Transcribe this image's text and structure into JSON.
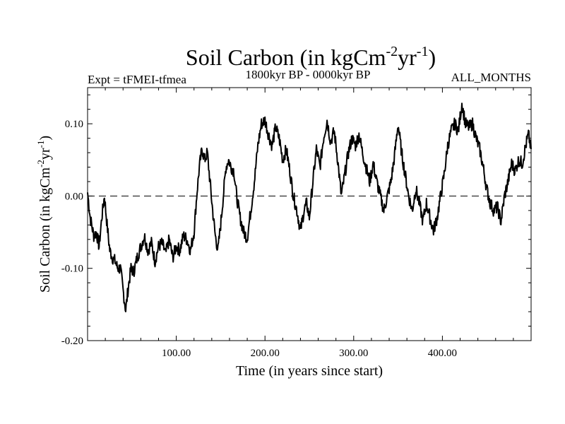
{
  "chart_data": {
    "type": "line",
    "title": {
      "base": "Soil Carbon (in kgCm",
      "sup1": "-2",
      "mid": "yr",
      "sup2": "-1",
      "end": ")"
    },
    "subtitle_left": "Expt = tFMEI-tfmea",
    "subtitle_center": "1800kyr BP - 0000kyr BP",
    "subtitle_right": "ALL_MONTHS",
    "xlabel": "Time (in years since start)",
    "ylabel": {
      "base": "Soil Carbon (in kgCm",
      "sup1": "-2",
      "mid": "yr",
      "sup2": "-1",
      "end": ")"
    },
    "xlim": [
      0,
      500
    ],
    "ylim": [
      -0.2,
      0.15
    ],
    "x_ticks": [
      100,
      200,
      300,
      400
    ],
    "x_tick_labels": [
      "100.00",
      "200.00",
      "300.00",
      "400.00"
    ],
    "y_ticks": [
      -0.2,
      -0.1,
      0.0,
      0.1
    ],
    "y_tick_labels": [
      "-0.20",
      "-0.10",
      "0.00",
      "0.10"
    ],
    "reference_line": {
      "y": 0.0,
      "style": "dashed"
    },
    "series": [
      {
        "name": "Soil Carbon",
        "points": [
          [
            0,
            0.005
          ],
          [
            3,
            -0.03
          ],
          [
            7,
            -0.055
          ],
          [
            10,
            -0.05
          ],
          [
            13,
            -0.07
          ],
          [
            16,
            -0.03
          ],
          [
            19,
            0.0
          ],
          [
            22,
            -0.04
          ],
          [
            25,
            -0.075
          ],
          [
            28,
            -0.085
          ],
          [
            31,
            -0.09
          ],
          [
            34,
            -0.1
          ],
          [
            37,
            -0.1
          ],
          [
            40,
            -0.13
          ],
          [
            43,
            -0.158
          ],
          [
            46,
            -0.125
          ],
          [
            49,
            -0.1
          ],
          [
            52,
            -0.105
          ],
          [
            56,
            -0.085
          ],
          [
            60,
            -0.07
          ],
          [
            64,
            -0.055
          ],
          [
            68,
            -0.075
          ],
          [
            72,
            -0.065
          ],
          [
            76,
            -0.09
          ],
          [
            80,
            -0.07
          ],
          [
            84,
            -0.065
          ],
          [
            88,
            -0.08
          ],
          [
            92,
            -0.06
          ],
          [
            96,
            -0.085
          ],
          [
            100,
            -0.07
          ],
          [
            104,
            -0.075
          ],
          [
            108,
            -0.055
          ],
          [
            112,
            -0.06
          ],
          [
            116,
            -0.075
          ],
          [
            120,
            -0.05
          ],
          [
            123,
            0.0
          ],
          [
            126,
            0.04
          ],
          [
            129,
            0.065
          ],
          [
            132,
            0.05
          ],
          [
            135,
            0.06
          ],
          [
            138,
            0.02
          ],
          [
            141,
            -0.02
          ],
          [
            144,
            -0.055
          ],
          [
            147,
            -0.075
          ],
          [
            150,
            -0.04
          ],
          [
            153,
            0.0
          ],
          [
            156,
            0.04
          ],
          [
            159,
            0.05
          ],
          [
            162,
            0.04
          ],
          [
            165,
            0.035
          ],
          [
            168,
            0.0
          ],
          [
            172,
            -0.03
          ],
          [
            176,
            -0.05
          ],
          [
            180,
            -0.058
          ],
          [
            184,
            -0.02
          ],
          [
            188,
            0.02
          ],
          [
            192,
            0.07
          ],
          [
            196,
            0.1
          ],
          [
            200,
            0.105
          ],
          [
            204,
            0.085
          ],
          [
            208,
            0.07
          ],
          [
            212,
            0.095
          ],
          [
            216,
            0.08
          ],
          [
            220,
            0.05
          ],
          [
            224,
            0.065
          ],
          [
            228,
            0.035
          ],
          [
            232,
            0.0
          ],
          [
            236,
            -0.02
          ],
          [
            240,
            -0.048
          ],
          [
            244,
            -0.02
          ],
          [
            247,
            -0.01
          ],
          [
            250,
            -0.03
          ],
          [
            254,
            0.02
          ],
          [
            258,
            0.065
          ],
          [
            262,
            0.04
          ],
          [
            266,
            0.08
          ],
          [
            270,
            0.105
          ],
          [
            274,
            0.075
          ],
          [
            278,
            0.09
          ],
          [
            282,
            0.05
          ],
          [
            286,
            0.0
          ],
          [
            290,
            0.03
          ],
          [
            294,
            0.06
          ],
          [
            298,
            0.08
          ],
          [
            302,
            0.07
          ],
          [
            306,
            0.085
          ],
          [
            310,
            0.06
          ],
          [
            314,
            0.04
          ],
          [
            318,
            0.02
          ],
          [
            322,
            0.045
          ],
          [
            326,
            0.02
          ],
          [
            330,
            0.0
          ],
          [
            334,
            -0.02
          ],
          [
            338,
            0.0
          ],
          [
            342,
            0.02
          ],
          [
            346,
            0.055
          ],
          [
            350,
            0.1
          ],
          [
            354,
            0.06
          ],
          [
            358,
            0.03
          ],
          [
            362,
            0.0
          ],
          [
            366,
            -0.02
          ],
          [
            370,
            0.01
          ],
          [
            374,
            -0.01
          ],
          [
            378,
            -0.035
          ],
          [
            382,
            -0.01
          ],
          [
            386,
            -0.03
          ],
          [
            390,
            -0.048
          ],
          [
            394,
            -0.03
          ],
          [
            398,
            0.0
          ],
          [
            402,
            0.03
          ],
          [
            406,
            0.07
          ],
          [
            410,
            0.09
          ],
          [
            414,
            0.1
          ],
          [
            418,
            0.09
          ],
          [
            422,
            0.128
          ],
          [
            426,
            0.1
          ],
          [
            430,
            0.095
          ],
          [
            434,
            0.1
          ],
          [
            438,
            0.08
          ],
          [
            442,
            0.065
          ],
          [
            446,
            0.04
          ],
          [
            450,
            0.01
          ],
          [
            454,
            -0.01
          ],
          [
            458,
            -0.02
          ],
          [
            462,
            -0.015
          ],
          [
            466,
            -0.035
          ],
          [
            470,
            0.0
          ],
          [
            474,
            0.02
          ],
          [
            478,
            0.045
          ],
          [
            482,
            0.035
          ],
          [
            486,
            0.05
          ],
          [
            490,
            0.045
          ],
          [
            494,
            0.07
          ],
          [
            497,
            0.085
          ],
          [
            500,
            0.065
          ]
        ]
      }
    ]
  }
}
